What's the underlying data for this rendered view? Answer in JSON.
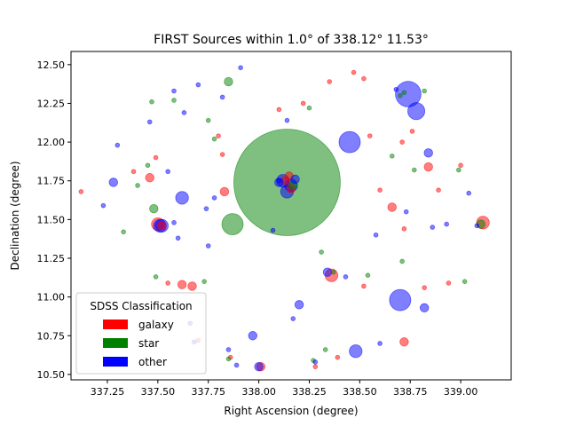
{
  "chart_data": {
    "type": "scatter",
    "title": "FIRST Sources within 1.0° of 338.12° 11.53°",
    "xlabel": "Right Ascension (degree)",
    "ylabel": "Declination (degree)",
    "xlim": [
      337.07,
      339.25
    ],
    "ylim": [
      10.465,
      12.585
    ],
    "xticks": [
      "337.25",
      "337.50",
      "337.75",
      "338.00",
      "338.25",
      "338.50",
      "338.75",
      "339.00"
    ],
    "xtick_values": [
      337.25,
      337.5,
      337.75,
      338.0,
      338.25,
      338.5,
      338.75,
      339.0
    ],
    "yticks": [
      "10.50",
      "10.75",
      "11.00",
      "11.25",
      "11.50",
      "11.75",
      "12.00",
      "12.25",
      "12.50"
    ],
    "ytick_values": [
      10.5,
      10.75,
      11.0,
      11.25,
      11.5,
      11.75,
      12.0,
      12.25,
      12.5
    ],
    "grid": false,
    "legend": {
      "title": "SDSS Classification",
      "placement": "lower-left",
      "entries": [
        {
          "label": "galaxy",
          "color": "#ff0000"
        },
        {
          "label": "star",
          "color": "#008000"
        },
        {
          "label": "other",
          "color": "#0000ff"
        }
      ]
    },
    "series": [
      {
        "class": "galaxy",
        "color": "#ff0000",
        "points": [
          [
            337.12,
            11.68,
            1
          ],
          [
            337.38,
            11.81,
            1
          ],
          [
            337.46,
            11.77,
            2
          ],
          [
            337.49,
            11.9,
            1
          ],
          [
            337.5,
            11.47,
            3
          ],
          [
            337.52,
            11.46,
            2
          ],
          [
            337.55,
            11.09,
            1
          ],
          [
            337.62,
            11.08,
            2
          ],
          [
            337.67,
            11.07,
            2
          ],
          [
            337.7,
            10.72,
            1
          ],
          [
            337.83,
            11.68,
            2
          ],
          [
            337.8,
            12.04,
            1
          ],
          [
            337.82,
            11.92,
            1
          ],
          [
            337.86,
            10.61,
            1
          ],
          [
            338.01,
            10.55,
            2
          ],
          [
            338.1,
            12.21,
            1
          ],
          [
            338.13,
            11.75,
            2
          ],
          [
            338.15,
            11.78,
            2
          ],
          [
            338.16,
            11.7,
            2
          ],
          [
            338.22,
            12.25,
            1
          ],
          [
            338.28,
            10.55,
            1
          ],
          [
            338.35,
            12.39,
            1
          ],
          [
            338.39,
            10.61,
            1
          ],
          [
            338.36,
            11.14,
            3
          ],
          [
            338.47,
            12.45,
            1
          ],
          [
            338.52,
            11.07,
            1
          ],
          [
            338.55,
            12.04,
            1
          ],
          [
            338.6,
            11.69,
            1
          ],
          [
            338.66,
            11.58,
            2
          ],
          [
            338.72,
            10.71,
            2
          ],
          [
            338.71,
            12.0,
            1
          ],
          [
            338.76,
            12.07,
            1
          ],
          [
            338.82,
            11.06,
            1
          ],
          [
            338.84,
            11.84,
            2
          ],
          [
            338.89,
            11.69,
            1
          ],
          [
            338.94,
            11.09,
            1
          ],
          [
            339.0,
            11.85,
            1
          ],
          [
            339.11,
            11.48,
            3
          ],
          [
            338.52,
            12.41,
            1
          ],
          [
            338.72,
            11.44,
            1
          ]
        ]
      },
      {
        "class": "star",
        "color": "#008000",
        "points": [
          [
            337.33,
            11.42,
            1
          ],
          [
            337.4,
            11.72,
            1
          ],
          [
            337.45,
            11.85,
            1
          ],
          [
            337.48,
            11.57,
            2
          ],
          [
            337.49,
            11.13,
            1
          ],
          [
            337.47,
            12.26,
            1
          ],
          [
            337.58,
            12.27,
            1
          ],
          [
            337.73,
            11.1,
            1
          ],
          [
            337.75,
            12.14,
            1
          ],
          [
            337.78,
            12.02,
            1
          ],
          [
            337.85,
            12.39,
            2
          ],
          [
            337.87,
            11.47,
            5
          ],
          [
            338.14,
            11.74,
            25
          ],
          [
            338.17,
            11.72,
            2
          ],
          [
            338.25,
            12.22,
            1
          ],
          [
            338.31,
            11.29,
            1
          ],
          [
            338.33,
            10.66,
            1
          ],
          [
            338.37,
            11.16,
            1
          ],
          [
            338.54,
            11.14,
            1
          ],
          [
            338.66,
            11.91,
            1
          ],
          [
            338.71,
            11.23,
            1
          ],
          [
            338.72,
            12.32,
            1
          ],
          [
            338.77,
            11.82,
            1
          ],
          [
            338.82,
            12.33,
            1
          ],
          [
            338.99,
            11.82,
            1
          ],
          [
            339.02,
            11.1,
            1
          ],
          [
            339.1,
            11.47,
            2
          ],
          [
            338.7,
            12.3,
            1
          ],
          [
            337.85,
            10.6,
            1
          ],
          [
            338.27,
            10.59,
            1
          ]
        ]
      },
      {
        "class": "other",
        "color": "#0000ff",
        "points": [
          [
            337.23,
            11.59,
            1
          ],
          [
            337.28,
            11.74,
            2
          ],
          [
            337.3,
            11.98,
            1
          ],
          [
            337.46,
            12.13,
            1
          ],
          [
            337.51,
            11.46,
            3
          ],
          [
            337.52,
            11.46,
            3
          ],
          [
            337.55,
            11.81,
            1
          ],
          [
            337.58,
            11.48,
            1
          ],
          [
            337.58,
            12.33,
            1
          ],
          [
            337.6,
            11.38,
            1
          ],
          [
            337.62,
            11.64,
            3
          ],
          [
            337.66,
            10.83,
            1
          ],
          [
            337.68,
            10.71,
            1
          ],
          [
            337.7,
            12.37,
            1
          ],
          [
            337.74,
            11.57,
            1
          ],
          [
            337.75,
            11.33,
            1
          ],
          [
            337.78,
            11.64,
            1
          ],
          [
            337.82,
            12.29,
            1
          ],
          [
            337.85,
            10.66,
            1
          ],
          [
            337.89,
            10.56,
            1
          ],
          [
            337.91,
            12.48,
            1
          ],
          [
            337.97,
            10.75,
            2
          ],
          [
            338.0,
            10.55,
            2
          ],
          [
            338.07,
            11.43,
            1
          ],
          [
            338.1,
            11.74,
            2
          ],
          [
            338.12,
            11.75,
            3
          ],
          [
            338.14,
            11.68,
            3
          ],
          [
            338.16,
            11.72,
            3
          ],
          [
            338.18,
            11.76,
            2
          ],
          [
            338.14,
            12.14,
            1
          ],
          [
            338.17,
            10.86,
            1
          ],
          [
            338.2,
            10.95,
            2
          ],
          [
            338.28,
            10.58,
            1
          ],
          [
            338.34,
            11.16,
            2
          ],
          [
            338.43,
            11.13,
            1
          ],
          [
            338.45,
            12.0,
            5
          ],
          [
            338.48,
            10.65,
            3
          ],
          [
            338.58,
            11.4,
            1
          ],
          [
            338.6,
            10.7,
            1
          ],
          [
            338.68,
            12.34,
            1
          ],
          [
            338.7,
            10.98,
            5
          ],
          [
            338.74,
            12.31,
            6
          ],
          [
            338.78,
            12.2,
            4
          ],
          [
            338.82,
            10.93,
            2
          ],
          [
            338.86,
            11.45,
            1
          ],
          [
            338.84,
            11.93,
            2
          ],
          [
            338.93,
            11.47,
            1
          ],
          [
            339.04,
            11.67,
            1
          ],
          [
            339.08,
            11.46,
            1
          ],
          [
            338.1,
            11.75,
            1
          ],
          [
            338.73,
            11.55,
            1
          ],
          [
            337.63,
            12.19,
            1
          ]
        ]
      }
    ]
  }
}
